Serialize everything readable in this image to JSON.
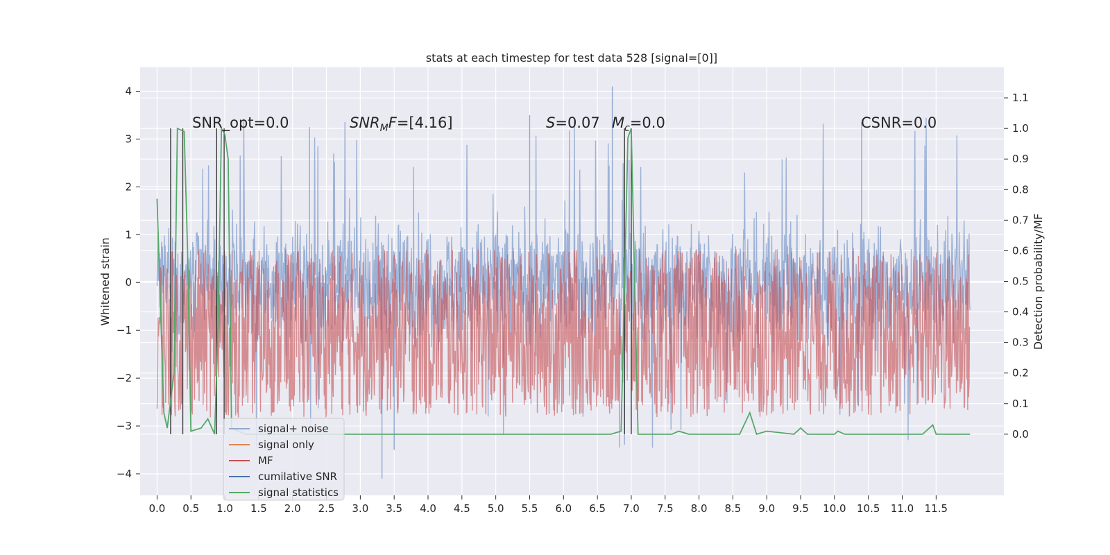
{
  "chart_data": {
    "type": "line",
    "title": "stats at each timestep for test data 528 [signal=[0]]",
    "xlabel": "",
    "ylabel": "Whitened strain",
    "y2label": "Detection probability/MF",
    "xlim": [
      -0.25,
      12.5
    ],
    "ylim": [
      -4.45,
      4.5
    ],
    "y2lim": [
      -0.2,
      1.2
    ],
    "grid": true,
    "legend_position": "lower-left",
    "x_ticks": [
      "0.0",
      "0.5",
      "1.0",
      "1.5",
      "2.0",
      "2.5",
      "3.0",
      "3.5",
      "4.0",
      "4.5",
      "5.0",
      "5.5",
      "6.0",
      "6.5",
      "7.0",
      "7.5",
      "8.0",
      "8.5",
      "9.0",
      "9.5",
      "10.0",
      "10.5",
      "11.0",
      "11.5"
    ],
    "y_ticks": [
      "4",
      "3",
      "2",
      "1",
      "0",
      "−1",
      "−2",
      "−3",
      "−4"
    ],
    "y2_ticks": [
      "1.1",
      "1.0",
      "0.9",
      "0.8",
      "0.7",
      "0.6",
      "0.5",
      "0.4",
      "0.3",
      "0.2",
      "0.1",
      "0.0"
    ],
    "annotations": {
      "snr_opt": "SNR_opt=0.0",
      "snr_mf_main": "SNR",
      "snr_mf_sub": "M",
      "snr_mf_f": "F",
      "snr_mf_val": "=[4.16]",
      "s_sym": "S",
      "s_val": "=0.07",
      "mc_sym": "M",
      "mc_sub": "c",
      "mc_val": "=0.0",
      "csnr": "CSNR=0.0"
    },
    "series": [
      {
        "name": "signal+ noise",
        "color": "#8fa8d1",
        "x_range": [
          0.0,
          12.0
        ],
        "y_range_typical": [
          -2.4,
          2.5
        ],
        "y_extremes": {
          "max": 4.1,
          "min": -4.1
        }
      },
      {
        "name": "signal only",
        "color": "#dd8452",
        "values": "0 (flat)"
      },
      {
        "name": "MF",
        "color": "#c44e52",
        "x_range": [
          0.0,
          12.0
        ],
        "y_range_typical": [
          0.05,
          0.62
        ]
      },
      {
        "name": "cumilative SNR",
        "color": "#4c72b0",
        "values": "0 (flat)"
      },
      {
        "name": "signal statistics",
        "color": "#55a868",
        "points": [
          [
            0.0,
            0.77
          ],
          [
            0.1,
            0.07
          ],
          [
            0.15,
            0.02
          ],
          [
            0.25,
            0.2
          ],
          [
            0.3,
            1.0
          ],
          [
            0.4,
            0.99
          ],
          [
            0.45,
            0.6
          ],
          [
            0.5,
            0.01
          ],
          [
            0.65,
            0.02
          ],
          [
            0.75,
            0.05
          ],
          [
            0.85,
            0.0
          ],
          [
            0.9,
            0.35
          ],
          [
            0.95,
            1.0
          ],
          [
            1.0,
            0.98
          ],
          [
            1.05,
            0.9
          ],
          [
            1.1,
            0.02
          ],
          [
            1.3,
            0.0
          ],
          [
            6.7,
            0.0
          ],
          [
            6.85,
            0.01
          ],
          [
            6.95,
            0.97
          ],
          [
            7.0,
            1.0
          ],
          [
            7.1,
            0.0
          ],
          [
            7.6,
            0.0
          ],
          [
            7.7,
            0.01
          ],
          [
            7.85,
            0.0
          ],
          [
            8.6,
            0.0
          ],
          [
            8.75,
            0.07
          ],
          [
            8.85,
            0.0
          ],
          [
            9.0,
            0.01
          ],
          [
            9.4,
            0.0
          ],
          [
            9.5,
            0.02
          ],
          [
            9.6,
            0.0
          ],
          [
            10.0,
            0.0
          ],
          [
            10.05,
            0.01
          ],
          [
            10.15,
            0.0
          ],
          [
            11.3,
            0.0
          ],
          [
            11.45,
            0.03
          ],
          [
            11.5,
            0.0
          ],
          [
            12.0,
            0.0
          ]
        ]
      }
    ],
    "vertical_lines": [
      0.2,
      0.38,
      0.88,
      0.99,
      6.9,
      7.0
    ]
  }
}
